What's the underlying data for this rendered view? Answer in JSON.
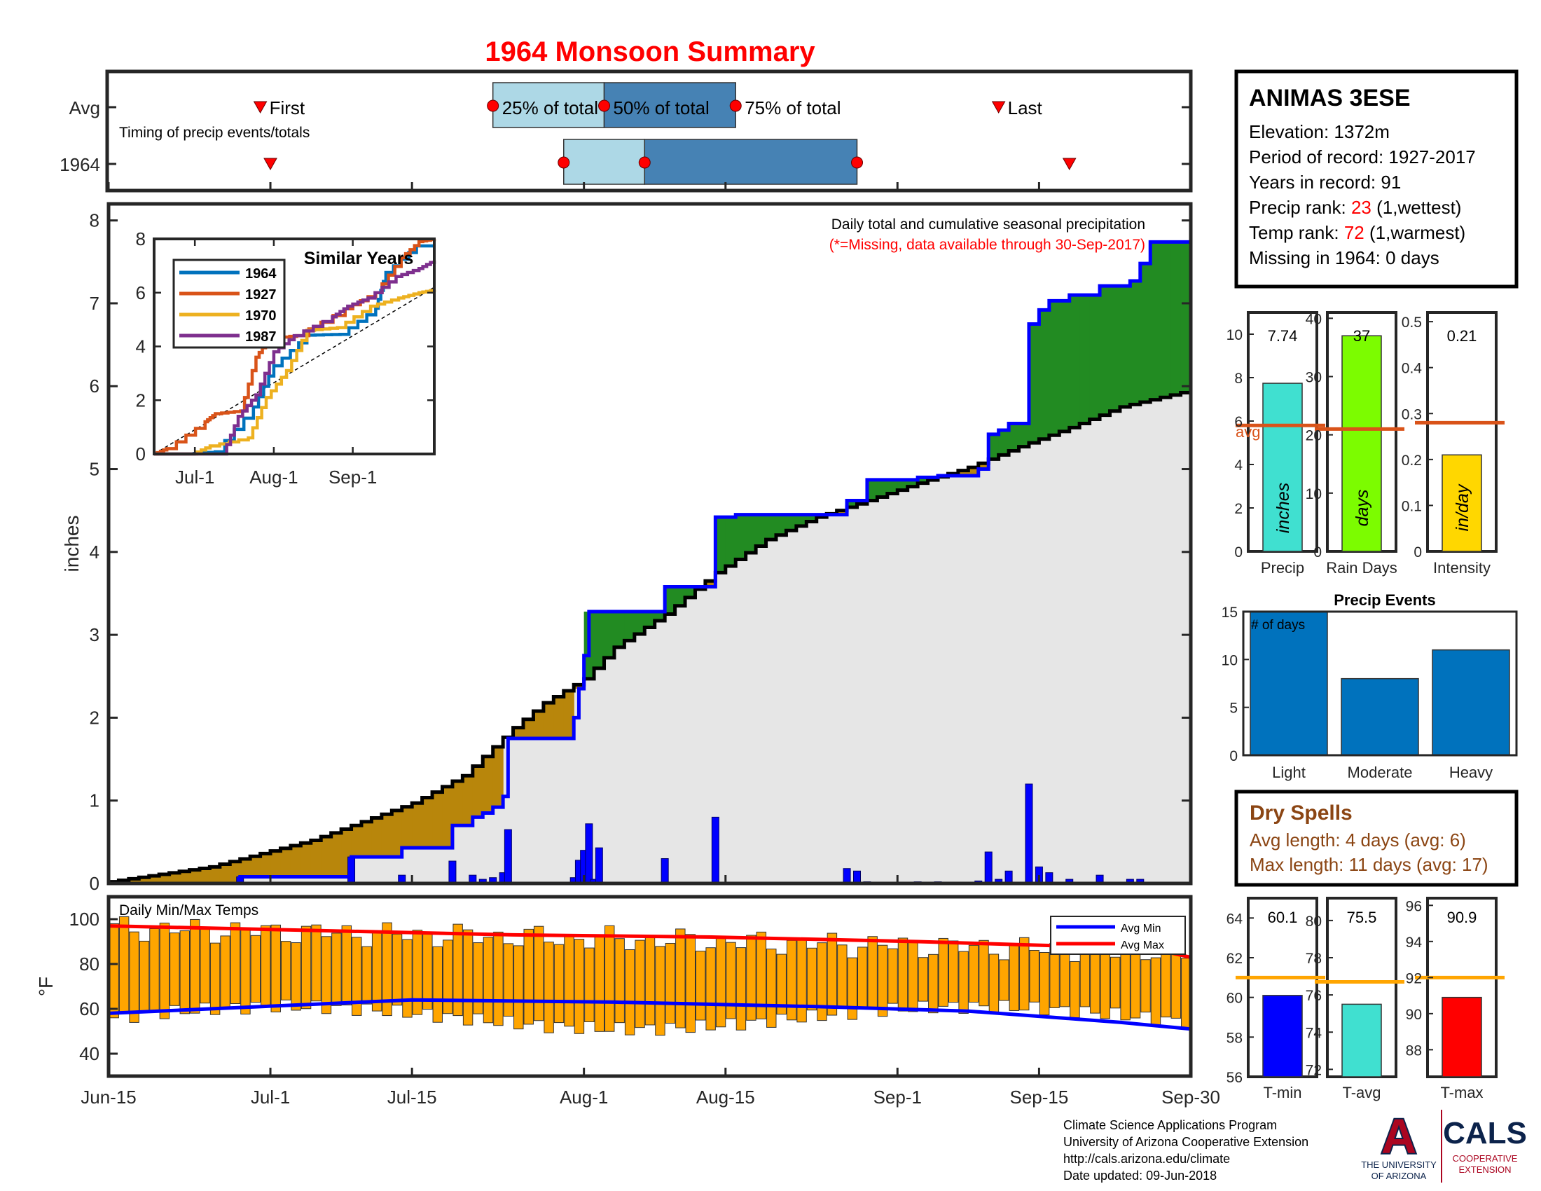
{
  "title": "1964 Monsoon Summary",
  "colors": {
    "title": "#ff0000",
    "green": "#228b22",
    "brown": "#b8860b",
    "grey_fill": "#e6e6e6",
    "blue": "#0000ff",
    "orange": "#ffa500",
    "avg_line": "#d95319",
    "dry_spell_text": "#8b4513",
    "light_blue": "#add8e6",
    "steel_blue": "#4682b4"
  },
  "timing": {
    "row_labels": [
      "Avg",
      "1964"
    ],
    "caption": "Timing of precip events/totals",
    "avg_labels": {
      "first": "First",
      "p25": "25% of total",
      "p50": "50% of total",
      "p75": "75% of total",
      "last": "Last"
    },
    "avg_days": {
      "first": 15,
      "p25": 38,
      "p50": 49,
      "p75": 62,
      "last": 88
    },
    "y1964_days": {
      "first": 16,
      "p25": 45,
      "p50": 53,
      "p75": 74,
      "last": 95
    }
  },
  "station": {
    "name": "ANIMAS 3ESE",
    "elevation": "Elevation: 1372m",
    "period": "Period of record: 1927-2017",
    "years": "Years in record: 91",
    "precip_rank_label": "Precip rank: ",
    "precip_rank_value": "23",
    "precip_rank_suffix": " (1,wettest)",
    "temp_rank_label": "Temp rank: ",
    "temp_rank_value": "72",
    "temp_rank_suffix": " (1,warmest)",
    "missing": "Missing in 1964: 0 days"
  },
  "main_chart": {
    "ylabel": "inches",
    "yticks": [
      "0",
      "1",
      "2",
      "3",
      "4",
      "5",
      "6",
      "7",
      "8"
    ],
    "xticks": [
      "Jun-15",
      "Jul-1",
      "Jul-15",
      "Aug-1",
      "Aug-15",
      "Sep-1",
      "Sep-15",
      "Sep-30"
    ],
    "xtick_days": [
      0,
      16,
      30,
      47,
      61,
      78,
      92,
      107
    ],
    "annotation_line1": "Daily total and cumulative seasonal precipitation",
    "annotation_line2": "(*=Missing, data available through 30-Sep-2017)"
  },
  "chart_data": [
    {
      "type": "area",
      "name": "Cumulative seasonal precipitation",
      "x_unit": "days after Jun-15",
      "ylim": [
        0,
        8
      ],
      "series": [
        {
          "name": "1964 cumulative",
          "points": [
            [
              0,
              0
            ],
            [
              13,
              0
            ],
            [
              13,
              0.08
            ],
            [
              24,
              0.08
            ],
            [
              24,
              0.32
            ],
            [
              29,
              0.32
            ],
            [
              29,
              0.43
            ],
            [
              34,
              0.43
            ],
            [
              34,
              0.7
            ],
            [
              36,
              0.7
            ],
            [
              36,
              0.8
            ],
            [
              37,
              0.8
            ],
            [
              37,
              0.85
            ],
            [
              38,
              0.85
            ],
            [
              38,
              0.92
            ],
            [
              39,
              0.92
            ],
            [
              39,
              1.05
            ],
            [
              39.5,
              1.05
            ],
            [
              39.5,
              1.75
            ],
            [
              46,
              1.75
            ],
            [
              46,
              2.0
            ],
            [
              46.5,
              2.0
            ],
            [
              46.5,
              2.35
            ],
            [
              47,
              2.35
            ],
            [
              47,
              2.75
            ],
            [
              47.5,
              2.75
            ],
            [
              47.5,
              3.28
            ],
            [
              55,
              3.28
            ],
            [
              55,
              3.58
            ],
            [
              60,
              3.58
            ],
            [
              60,
              4.42
            ],
            [
              62,
              4.42
            ],
            [
              62,
              4.45
            ],
            [
              73,
              4.45
            ],
            [
              73,
              4.62
            ],
            [
              75,
              4.62
            ],
            [
              75,
              4.87
            ],
            [
              80,
              4.87
            ],
            [
              80,
              4.9
            ],
            [
              82,
              4.9
            ],
            [
              82,
              4.92
            ],
            [
              86,
              4.92
            ],
            [
              86,
              5.0
            ],
            [
              87,
              5.0
            ],
            [
              87,
              5.42
            ],
            [
              88,
              5.42
            ],
            [
              88,
              5.47
            ],
            [
              89,
              5.47
            ],
            [
              89,
              5.55
            ],
            [
              91,
              5.55
            ],
            [
              91,
              6.75
            ],
            [
              92,
              6.75
            ],
            [
              92,
              6.92
            ],
            [
              93,
              6.92
            ],
            [
              93,
              7.03
            ],
            [
              95,
              7.03
            ],
            [
              95,
              7.1
            ],
            [
              98,
              7.1
            ],
            [
              98,
              7.21
            ],
            [
              101,
              7.21
            ],
            [
              101,
              7.27
            ],
            [
              102,
              7.27
            ],
            [
              102,
              7.48
            ],
            [
              103,
              7.48
            ],
            [
              103,
              7.74
            ],
            [
              107,
              7.74
            ]
          ]
        },
        {
          "name": "Average cumulative",
          "points": [
            [
              0,
              0.02
            ],
            [
              10,
              0.2
            ],
            [
              20,
              0.52
            ],
            [
              30,
              0.97
            ],
            [
              35,
              1.3
            ],
            [
              40,
              1.88
            ],
            [
              43,
              2.18
            ],
            [
              47,
              2.47
            ],
            [
              50,
              2.85
            ],
            [
              55,
              3.25
            ],
            [
              60,
              3.75
            ],
            [
              65,
              4.15
            ],
            [
              70,
              4.42
            ],
            [
              75,
              4.62
            ],
            [
              80,
              4.83
            ],
            [
              85,
              5.02
            ],
            [
              90,
              5.27
            ],
            [
              95,
              5.5
            ],
            [
              100,
              5.75
            ],
            [
              107,
              5.95
            ]
          ]
        }
      ]
    },
    {
      "type": "bar",
      "name": "1964 daily precipitation",
      "x_unit": "days after Jun-15",
      "points": [
        [
          13,
          0.08
        ],
        [
          24,
          0.32
        ],
        [
          29,
          0.1
        ],
        [
          34,
          0.27
        ],
        [
          36,
          0.1
        ],
        [
          37,
          0.05
        ],
        [
          38,
          0.07
        ],
        [
          39,
          0.13
        ],
        [
          39.5,
          0.65
        ],
        [
          46,
          0.07
        ],
        [
          46.5,
          0.28
        ],
        [
          47,
          0.4
        ],
        [
          47.5,
          0.72
        ],
        [
          48,
          0.05
        ],
        [
          48.5,
          0.43
        ],
        [
          55,
          0.3
        ],
        [
          60,
          0.8
        ],
        [
          73,
          0.18
        ],
        [
          74,
          0.15
        ],
        [
          75,
          0.02
        ],
        [
          80,
          0.02
        ],
        [
          82,
          0.02
        ],
        [
          86,
          0.03
        ],
        [
          87,
          0.38
        ],
        [
          88,
          0.05
        ],
        [
          89,
          0.15
        ],
        [
          91,
          1.2
        ],
        [
          92,
          0.2
        ],
        [
          93,
          0.13
        ],
        [
          95,
          0.05
        ],
        [
          98,
          0.1
        ],
        [
          101,
          0.05
        ],
        [
          102,
          0.05
        ]
      ]
    },
    {
      "type": "line",
      "name": "Similar Years",
      "title": "Similar Years",
      "ylim": [
        0,
        8
      ],
      "xticks": [
        "Jul-1",
        "Aug-1",
        "Sep-1"
      ],
      "yticks": [
        "0",
        "2",
        "4",
        "6",
        "8"
      ],
      "series": [
        {
          "name": "1964",
          "color": "#0072bd",
          "values": [
            [
              0,
              0
            ],
            [
              13,
              0
            ],
            [
              24,
              0.08
            ],
            [
              39,
              1.75
            ],
            [
              47,
              3.28
            ],
            [
              60,
              4.42
            ],
            [
              73,
              4.45
            ],
            [
              87,
              5.42
            ],
            [
              91,
              6.75
            ],
            [
              103,
              7.74
            ],
            [
              110,
              7.74
            ]
          ]
        },
        {
          "name": "1927",
          "color": "#d95319",
          "values": [
            [
              0,
              0
            ],
            [
              5,
              0.2
            ],
            [
              20,
              1.2
            ],
            [
              24,
              1.5
            ],
            [
              34,
              1.6
            ],
            [
              40,
              3.6
            ],
            [
              45,
              4.3
            ],
            [
              56,
              4.4
            ],
            [
              75,
              5.4
            ],
            [
              87,
              6.0
            ],
            [
              97,
              7.3
            ],
            [
              104,
              7.9
            ],
            [
              110,
              8.0
            ]
          ]
        },
        {
          "name": "1970",
          "color": "#edb120",
          "values": [
            [
              0,
              0
            ],
            [
              15,
              0
            ],
            [
              22,
              0.3
            ],
            [
              37,
              0.6
            ],
            [
              44,
              2.1
            ],
            [
              52,
              3.1
            ],
            [
              60,
              4.6
            ],
            [
              72,
              4.7
            ],
            [
              85,
              5.5
            ],
            [
              96,
              5.8
            ],
            [
              104,
              6.0
            ],
            [
              110,
              6.1
            ]
          ]
        },
        {
          "name": "1987",
          "color": "#7e2f8e",
          "values": [
            [
              0,
              0
            ],
            [
              27,
              0
            ],
            [
              33,
              1.4
            ],
            [
              40,
              2.2
            ],
            [
              47,
              3.8
            ],
            [
              55,
              4.4
            ],
            [
              70,
              5.1
            ],
            [
              76,
              5.5
            ],
            [
              84,
              5.8
            ],
            [
              95,
              6.6
            ],
            [
              104,
              6.9
            ],
            [
              110,
              7.2
            ]
          ]
        }
      ]
    },
    {
      "type": "bar",
      "name": "Summary bars",
      "panels": [
        {
          "label": "Precip",
          "value": 7.74,
          "value_text": "7.74",
          "avg": 5.8,
          "avg_label": "avg",
          "ylim": [
            0,
            11
          ],
          "yticks": [
            "0",
            "2",
            "4",
            "6",
            "8",
            "10"
          ],
          "unit": "inches",
          "color": "#40e0d0"
        },
        {
          "label": "Rain Days",
          "value": 37,
          "value_text": "37",
          "avg": 21,
          "ylim": [
            0,
            41
          ],
          "yticks": [
            "0",
            "10",
            "20",
            "30",
            "40"
          ],
          "unit": "days",
          "color": "#7cfc00"
        },
        {
          "label": "Intensity",
          "value": 0.21,
          "value_text": "0.21",
          "avg": 0.28,
          "ylim": [
            0,
            0.52
          ],
          "yticks": [
            "0",
            "0.1",
            "0.2",
            "0.3",
            "0.4",
            "0.5"
          ],
          "unit": "in/day",
          "color": "#ffd700"
        }
      ]
    },
    {
      "type": "bar",
      "name": "Precip Events",
      "title": "Precip Events",
      "annotation": "# of days",
      "categories": [
        "Light",
        "Moderate",
        "Heavy"
      ],
      "values": [
        15,
        8,
        11
      ],
      "ylim": [
        0,
        15
      ],
      "yticks": [
        "0",
        "5",
        "10",
        "15"
      ]
    },
    {
      "type": "bar",
      "name": "Daily Min/Max Temps",
      "title": "Daily Min/Max Temps",
      "ylabel": "°F",
      "ylim": [
        30,
        110
      ],
      "yticks": [
        "40",
        "60",
        "80",
        "100"
      ],
      "legend": [
        "Avg Min",
        "Avg Max"
      ],
      "legend_position": "top-right",
      "avg_min": [
        [
          0,
          58
        ],
        [
          10,
          60
        ],
        [
          30,
          64
        ],
        [
          50,
          63
        ],
        [
          70,
          61
        ],
        [
          85,
          59
        ],
        [
          100,
          54
        ],
        [
          107,
          51
        ]
      ],
      "avg_max": [
        [
          0,
          97
        ],
        [
          20,
          95
        ],
        [
          40,
          93
        ],
        [
          60,
          92
        ],
        [
          80,
          90
        ],
        [
          95,
          88
        ],
        [
          105,
          85
        ],
        [
          107,
          83
        ]
      ]
    },
    {
      "type": "bar",
      "name": "Temperature summary",
      "panels": [
        {
          "label": "T-min",
          "value": 60.1,
          "value_text": "60.1",
          "avg": 61,
          "ylim": [
            56,
            65
          ],
          "yticks": [
            "56",
            "58",
            "60",
            "62",
            "64"
          ],
          "color": "#0000ff"
        },
        {
          "label": "T-avg",
          "value": 75.5,
          "value_text": "75.5",
          "avg": 76.7,
          "ylim": [
            71.6,
            81.2
          ],
          "yticks": [
            "72",
            "74",
            "76",
            "78",
            "80"
          ],
          "color": "#40e0d0"
        },
        {
          "label": "T-max",
          "value": 90.9,
          "value_text": "90.9",
          "avg": 92,
          "ylim": [
            86.5,
            96.4
          ],
          "yticks": [
            "88",
            "90",
            "92",
            "94",
            "96"
          ],
          "color": "#ff0000"
        }
      ]
    }
  ],
  "dry_spells": {
    "title": "Dry Spells",
    "avg_length": "Avg length: 4 days (avg: 6)",
    "max_length": "Max length: 11 days (avg: 17)"
  },
  "footer": {
    "line1": "Climate Science Applications Program",
    "line2": "University of Arizona Cooperative Extension",
    "line3": "http://cals.arizona.edu/climate",
    "line4": " Date updated: 09-Jun-2018",
    "ua_letter": "A",
    "ua_name_1": "THE UNIVERSITY",
    "ua_name_2": "OF ARIZONA",
    "cals": "CALS",
    "cals_sub_1": "COOPERATIVE",
    "cals_sub_2": "EXTENSION"
  }
}
